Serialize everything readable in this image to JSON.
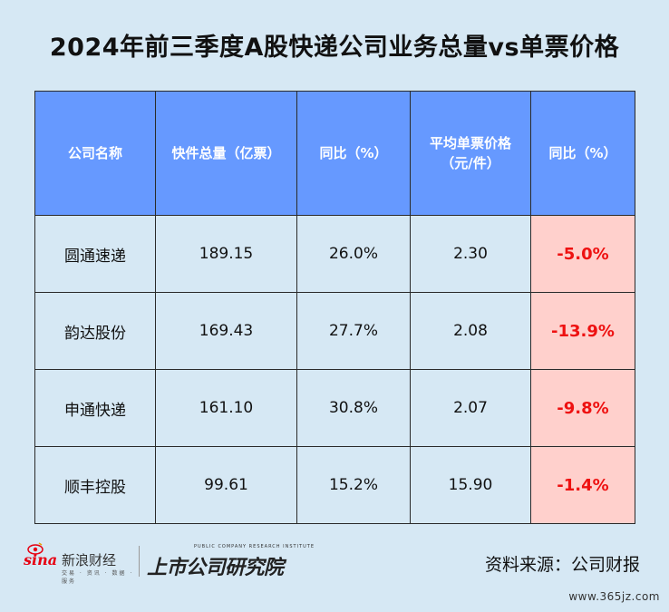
{
  "title": "2024年前三季度A股快递公司业务总量vs单票价格",
  "chart_data": {
    "type": "table",
    "columns": [
      "公司名称",
      "快件总量（亿票）",
      "同比（%）",
      "平均单票价格（元/件）",
      "同比（%）"
    ],
    "rows": [
      {
        "company": "圆通速递",
        "volume": "189.15",
        "volume_yoy": "26.0%",
        "price": "2.30",
        "price_yoy": "-5.0%"
      },
      {
        "company": "韵达股份",
        "volume": "169.43",
        "volume_yoy": "27.7%",
        "price": "2.08",
        "price_yoy": "-13.9%"
      },
      {
        "company": "申通快递",
        "volume": "161.10",
        "volume_yoy": "30.8%",
        "price": "2.07",
        "price_yoy": "-9.8%"
      },
      {
        "company": "顺丰控股",
        "volume": "99.61",
        "volume_yoy": "15.2%",
        "price": "15.90",
        "price_yoy": "-1.4%"
      }
    ]
  },
  "colors": {
    "header_bg": "#6699ff",
    "negative_cell_bg": "#ffd0cc",
    "negative_text": "#ee1111",
    "page_bg": "#d6e8f4"
  },
  "footer": {
    "sina_wordmark": "sina",
    "sina_name": "新浪财经",
    "sina_tagline": "交易 · 资讯 · 数据 · 服务",
    "institute_en": "PUBLIC COMPANY RESEARCH INSTITUTE",
    "institute_cn": "上市公司研究院",
    "source": "资料来源：公司财报"
  },
  "watermark": "www.365jz.com"
}
